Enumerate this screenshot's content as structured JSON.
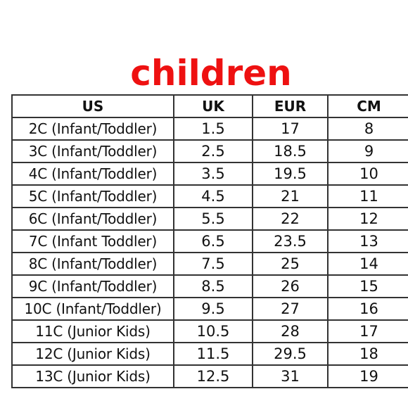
{
  "title": "children",
  "colors": {
    "title": "#ee1111",
    "text": "#111111",
    "border": "#333333"
  },
  "table": {
    "headers": [
      "US",
      "UK",
      "EUR",
      "CM"
    ],
    "rows": [
      [
        "2C (Infant/Toddler)",
        "1.5",
        "17",
        "8"
      ],
      [
        "3C (Infant/Toddler)",
        "2.5",
        "18.5",
        "9"
      ],
      [
        "4C (Infant/Toddler)",
        "3.5",
        "19.5",
        "10"
      ],
      [
        "5C (Infant/Toddler)",
        "4.5",
        "21",
        "11"
      ],
      [
        "6C (Infant/Toddler)",
        "5.5",
        "22",
        "12"
      ],
      [
        "7C (Infant Toddler)",
        "6.5",
        "23.5",
        "13"
      ],
      [
        "8C (Infant/Toddler)",
        "7.5",
        "25",
        "14"
      ],
      [
        "9C (Infant/Toddler)",
        "8.5",
        "26",
        "15"
      ],
      [
        "10C (Infant/Toddler)",
        "9.5",
        "27",
        "16"
      ],
      [
        "11C (Junior Kids)",
        "10.5",
        "28",
        "17"
      ],
      [
        "12C (Junior Kids)",
        "11.5",
        "29.5",
        "18"
      ],
      [
        "13C (Junior Kids)",
        "12.5",
        "31",
        "19"
      ]
    ]
  }
}
